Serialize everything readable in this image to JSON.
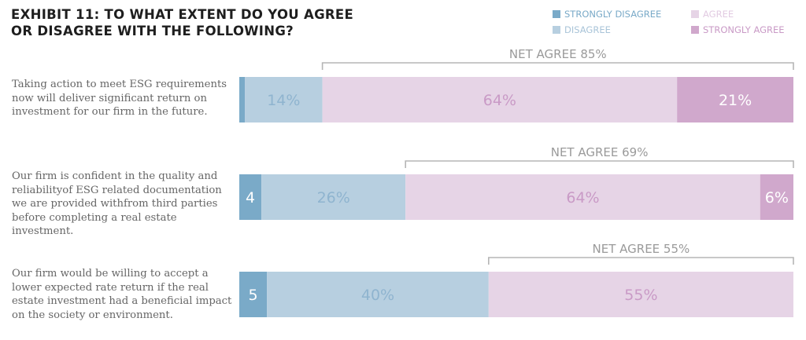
{
  "title": "EXHIBIT 11: TO WHAT EXTENT DO YOU AGREE OR DISAGREE WITH THE FOLLOWING?",
  "colors": {
    "strongly_disagree": "#7aaac8",
    "disagree": "#b7cfe0",
    "agree": "#e6d4e6",
    "strongly_agree": "#d0a8cc",
    "bracket": "#b5b5b5"
  },
  "legend": [
    {
      "label": "STRONGLY DISAGREE",
      "color": "#7aaac8",
      "text_color": "#7aaac8"
    },
    {
      "label": "AGREE",
      "color": "#e6d4e6",
      "text_color": "#e2cbe2"
    },
    {
      "label": "DISAGREE",
      "color": "#b7cfe0",
      "text_color": "#a9c4d8"
    },
    {
      "label": "STRONGLY AGREE",
      "color": "#d0a8cc",
      "text_color": "#c99ac6"
    }
  ],
  "chart_data": {
    "type": "bar",
    "orientation": "horizontal",
    "stacked": true,
    "xlim": [
      0,
      100
    ],
    "series_names": [
      "STRONGLY DISAGREE",
      "DISAGREE",
      "AGREE",
      "STRONGLY AGREE"
    ],
    "categories": [
      "Taking action to meet ESG requirements now will deliver significant return on investment for our firm in the future.",
      "Our firm is confident in the quality and reliabilityof ESG related documentation we are provided withfrom third parties before completing a real estate investment.",
      "Our firm would be willing to accept a lower expected rate return if the real estate investment had a beneficial impact on the society or environment."
    ],
    "rows": [
      {
        "segments": [
          {
            "series": "STRONGLY DISAGREE",
            "value": 1,
            "label": ""
          },
          {
            "series": "DISAGREE",
            "value": 14,
            "label": "14%"
          },
          {
            "series": "AGREE",
            "value": 64,
            "label": "64%"
          },
          {
            "series": "STRONGLY AGREE",
            "value": 21,
            "label": "21%"
          }
        ],
        "net_agree": "NET AGREE 85%"
      },
      {
        "segments": [
          {
            "series": "STRONGLY DISAGREE",
            "value": 4,
            "label": "4"
          },
          {
            "series": "DISAGREE",
            "value": 26,
            "label": "26%"
          },
          {
            "series": "AGREE",
            "value": 64,
            "label": "64%"
          },
          {
            "series": "STRONGLY AGREE",
            "value": 6,
            "label": "6%"
          }
        ],
        "net_agree": "NET AGREE 69%"
      },
      {
        "segments": [
          {
            "series": "STRONGLY DISAGREE",
            "value": 5,
            "label": "5"
          },
          {
            "series": "DISAGREE",
            "value": 40,
            "label": "40%"
          },
          {
            "series": "AGREE",
            "value": 55,
            "label": "55%"
          },
          {
            "series": "STRONGLY AGREE",
            "value": 0,
            "label": ""
          }
        ],
        "net_agree": "NET AGREE 55%"
      }
    ]
  }
}
